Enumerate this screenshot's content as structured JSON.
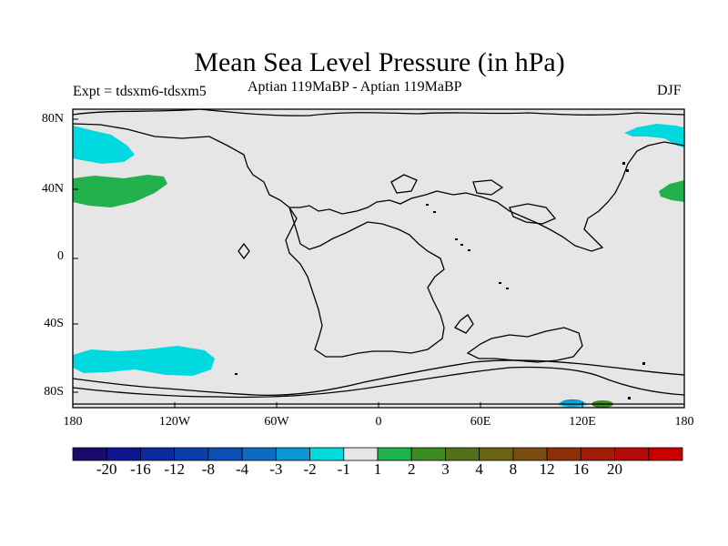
{
  "title": "Mean Sea Level Pressure (in hPa)",
  "experiment": "Expt = tdsxm6-tdsxm5",
  "subtitle": "Aptian   119MaBP - Aptian   119MaBP",
  "season": "DJF",
  "lat_labels": [
    "80N",
    "40N",
    "0",
    "40S",
    "80S"
  ],
  "lon_labels": [
    "180",
    "120W",
    "60W",
    "0",
    "60E",
    "120E",
    "180"
  ],
  "colorbar": {
    "colors": [
      "#1a0a6e",
      "#0d1690",
      "#0b2a9e",
      "#0a3ea8",
      "#0a50b4",
      "#0b6cc4",
      "#0a95d4",
      "#00dcdc",
      "#e6e6e6",
      "#1db34a",
      "#3d8c23",
      "#55701a",
      "#6b6414",
      "#7b4c0f",
      "#8c300a",
      "#a01d0a",
      "#b50a0a",
      "#c80000"
    ],
    "labels": [
      "-20",
      "-16",
      "-12",
      "-8",
      "-4",
      "-3",
      "-2",
      "-1",
      "1",
      "2",
      "3",
      "4",
      "8",
      "12",
      "16",
      "20"
    ]
  },
  "colors": {
    "land": "#e6e6e6",
    "ocean": "#e6e6e6",
    "cyan": "#00d9e0",
    "green": "#22b14c",
    "blue": "#0b6cc4",
    "darkgreen": "#3d8c23"
  }
}
